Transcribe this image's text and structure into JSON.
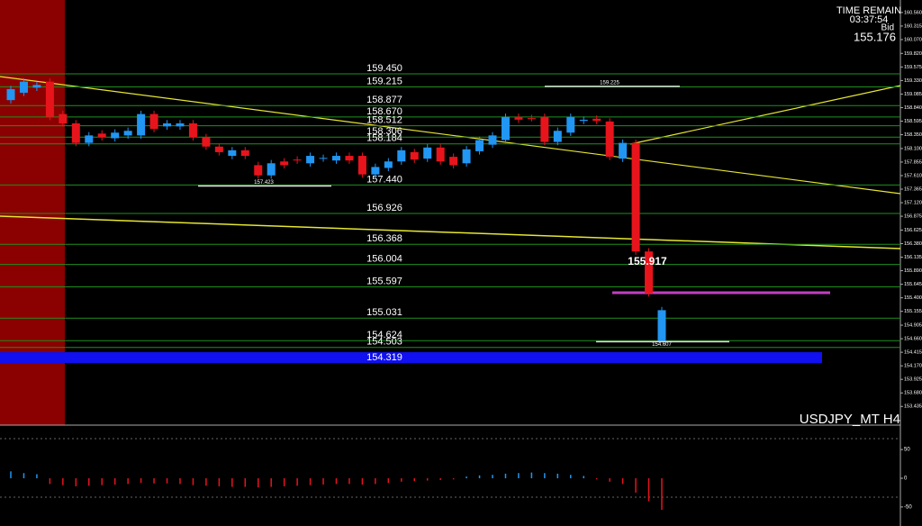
{
  "chart_data": {
    "type": "candlestick",
    "title": "USDJPY_MT H4",
    "timer": {
      "caption": "TIME REMAIN",
      "time": "03:37:54",
      "bid_caption": "Bid",
      "bid": 155.176
    },
    "up_color": "#2196f3",
    "down_color": "#e8141c",
    "open": [
      158.975,
      159.109,
      159.2,
      159.31,
      158.723,
      158.555,
      158.202,
      158.37,
      158.286,
      158.337,
      158.337,
      158.723,
      158.5,
      158.5,
      158.555,
      158.303,
      158.135,
      157.967,
      158.068,
      157.799,
      157.614,
      157.866,
      157.9,
      157.833,
      157.92,
      157.883,
      157.967,
      157.967,
      157.631,
      157.749,
      157.866,
      158.034,
      157.917,
      158.118,
      157.95,
      157.833,
      158.051,
      158.169,
      158.253,
      158.672,
      158.65,
      158.672,
      158.219,
      158.387,
      158.6,
      158.64,
      158.589,
      157.917,
      158.202,
      156.238,
      154.607
    ],
    "high": [
      159.236,
      159.37,
      159.31,
      159.37,
      158.783,
      158.615,
      158.397,
      158.43,
      158.447,
      158.48,
      158.783,
      158.783,
      158.615,
      158.615,
      158.615,
      158.363,
      158.195,
      158.128,
      158.128,
      157.859,
      157.893,
      157.926,
      157.96,
      158.027,
      157.99,
      158.027,
      158.027,
      158.027,
      157.826,
      157.926,
      158.128,
      158.094,
      158.178,
      158.178,
      158.01,
      158.145,
      158.313,
      158.397,
      158.732,
      158.732,
      158.71,
      158.732,
      158.48,
      158.732,
      158.68,
      158.7,
      158.649,
      158.262,
      158.262,
      156.298,
      155.236
    ],
    "low": [
      158.915,
      159.049,
      159.14,
      158.612,
      158.495,
      158.142,
      158.142,
      158.243,
      158.226,
      158.277,
      158.277,
      158.394,
      158.44,
      158.44,
      158.243,
      158.075,
      157.974,
      157.907,
      157.907,
      157.554,
      157.554,
      157.739,
      157.823,
      157.773,
      157.86,
      157.823,
      157.823,
      157.571,
      157.571,
      157.689,
      157.806,
      157.84,
      157.857,
      157.806,
      157.739,
      157.773,
      157.991,
      158.109,
      158.193,
      158.562,
      158.59,
      158.159,
      158.159,
      158.327,
      158.54,
      158.54,
      157.89,
      157.857,
      156.178,
      155.422,
      154.607
    ],
    "close": [
      159.176,
      159.31,
      159.25,
      158.672,
      158.555,
      158.202,
      158.337,
      158.303,
      158.387,
      158.42,
      158.723,
      158.454,
      158.555,
      158.555,
      158.303,
      158.135,
      158.034,
      158.068,
      157.967,
      157.614,
      157.833,
      157.799,
      157.883,
      157.967,
      157.93,
      157.967,
      157.883,
      157.631,
      157.766,
      157.866,
      158.068,
      157.9,
      158.118,
      157.866,
      157.799,
      158.085,
      158.253,
      158.337,
      158.672,
      158.622,
      158.64,
      158.219,
      158.42,
      158.672,
      158.62,
      158.6,
      157.95,
      158.202,
      156.238,
      155.482,
      155.176
    ],
    "ylim": [
      153.13,
      160.786
    ],
    "yticks": [
      {
        "value": 160.56,
        "label": "160.560"
      },
      160.315,
      {
        "value": 160.07,
        "label": "160.070"
      },
      {
        "value": 159.82,
        "label": "159.820"
      },
      159.575,
      {
        "value": 159.33,
        "label": "159.330"
      },
      159.085,
      {
        "value": 158.84,
        "label": "158.840"
      },
      158.595,
      {
        "value": 158.35,
        "label": "158.350"
      },
      {
        "value": 158.1,
        "label": "158.100"
      },
      157.855,
      {
        "value": 157.61,
        "label": "157.610"
      },
      157.365,
      {
        "value": 157.12,
        "label": "157.120"
      },
      156.875,
      156.625,
      {
        "value": 156.38,
        "label": "156.380"
      },
      156.135,
      {
        "value": 155.89,
        "label": "155.890"
      },
      155.645,
      {
        "value": 155.4,
        "label": "155.400"
      },
      155.155,
      154.905,
      {
        "value": 154.66,
        "label": "154.660"
      },
      154.415,
      {
        "value": 154.17,
        "label": "154.170"
      },
      153.925,
      {
        "value": 153.68,
        "label": "153.680"
      },
      153.435
    ],
    "grid": false,
    "level_color": "#1f8f1f",
    "levels": [
      {
        "value": 159.45,
        "label": "159.450"
      },
      {
        "value": 159.215,
        "label": "159.215"
      },
      {
        "value": 158.877,
        "label": "158.877"
      },
      {
        "value": 158.67,
        "label": "158.670"
      },
      {
        "value": 158.512,
        "label": "158.512"
      },
      {
        "value": 158.306,
        "label": "158.306"
      },
      {
        "value": 158.184,
        "label": "158.184"
      },
      {
        "value": 157.44,
        "label": "157.440"
      },
      {
        "value": 156.926,
        "label": "156.926"
      },
      {
        "value": 156.368,
        "label": "156.368"
      },
      {
        "value": 156.004,
        "label": "156.004"
      },
      {
        "value": 155.597,
        "label": "155.597"
      },
      {
        "value": 155.031,
        "label": "155.031"
      },
      {
        "value": 154.624,
        "label": "154.624"
      },
      {
        "value": 154.503,
        "label": "154.503"
      }
    ],
    "bid_band": {
      "value": 154.319,
      "label": "154.319",
      "color": "#1010f0"
    },
    "price_marks": [
      159.225,
      157.423,
      154.607
    ],
    "callout": 155.917,
    "oscillator": {
      "values": [
        12,
        9,
        7,
        -10,
        -12,
        -14,
        -13,
        -12,
        -11,
        -10,
        -8,
        -9,
        -9,
        -10,
        -12,
        -13,
        -14,
        -15,
        -15,
        -16,
        -15,
        -14,
        -13,
        -12,
        -11,
        -10,
        -10,
        -11,
        -10,
        -8,
        -6,
        -5,
        -4,
        -3,
        -2,
        3,
        5,
        6,
        8,
        9,
        10,
        9,
        8,
        6,
        4,
        -2,
        -6,
        -10,
        -25,
        -40,
        -55
      ],
      "ylim": [
        -80,
        80
      ],
      "yticks": [
        50,
        0,
        -50
      ]
    }
  }
}
